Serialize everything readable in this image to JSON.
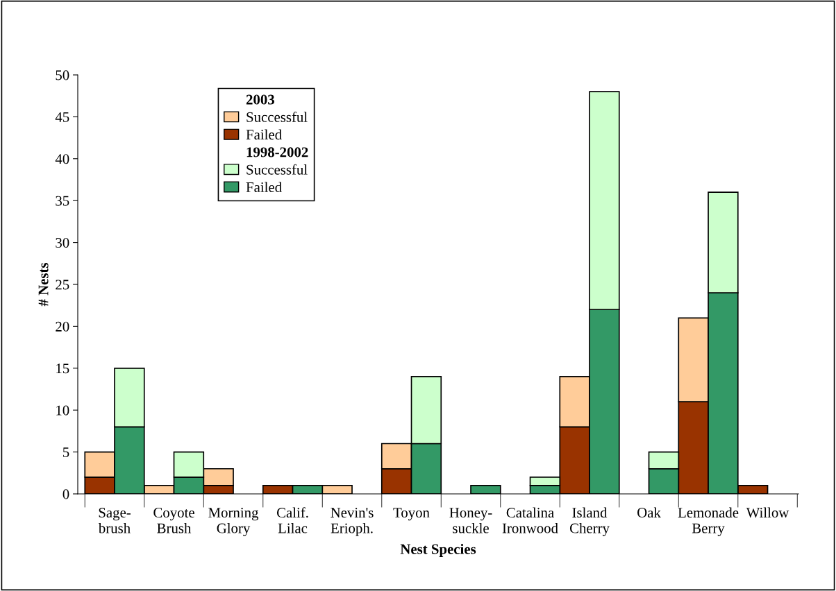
{
  "chart_data": [
    {
      "type": "bar",
      "stacked": true,
      "legend_title": "2003",
      "xlabel": "Nest Species",
      "ylabel": "# Nests",
      "categories": [
        "Sage-\nbrush",
        "Coyote\nBrush",
        "Morning\nGlory",
        "Calif.\nLilac",
        "Nevin's\nErioph.",
        "Toyon",
        "Honey-\nsuckle",
        "Catalina\nIronwood",
        "Island\nCherry",
        "Oak",
        "Lemonade\nBerry",
        "Willow"
      ],
      "series": [
        {
          "name": "Failed",
          "color": "#993300",
          "values": [
            2,
            0,
            1,
            1,
            0,
            3,
            0,
            0,
            8,
            0,
            11,
            1
          ]
        },
        {
          "name": "Successful",
          "color": "#ffcc99",
          "values": [
            3,
            1,
            2,
            0,
            1,
            3,
            0,
            0,
            6,
            0,
            10,
            0
          ]
        }
      ],
      "ylim": [
        0,
        50
      ],
      "yticks": [
        0,
        5,
        10,
        15,
        20,
        25,
        30,
        35,
        40,
        45,
        50
      ],
      "grid": false,
      "legend": "top left"
    },
    {
      "type": "bar",
      "stacked": true,
      "legend_title": "1998-2002",
      "series": [
        {
          "name": "Failed",
          "color": "#339966",
          "values": [
            8,
            2,
            0,
            1,
            0,
            6,
            1,
            1,
            22,
            3,
            24,
            0
          ]
        },
        {
          "name": "Successful",
          "color": "#ccffcc",
          "values": [
            7,
            3,
            0,
            0,
            0,
            8,
            0,
            1,
            26,
            2,
            12,
            0
          ]
        }
      ],
      "ylim": [
        0,
        50
      ],
      "grid": false,
      "legend": "top left"
    }
  ]
}
